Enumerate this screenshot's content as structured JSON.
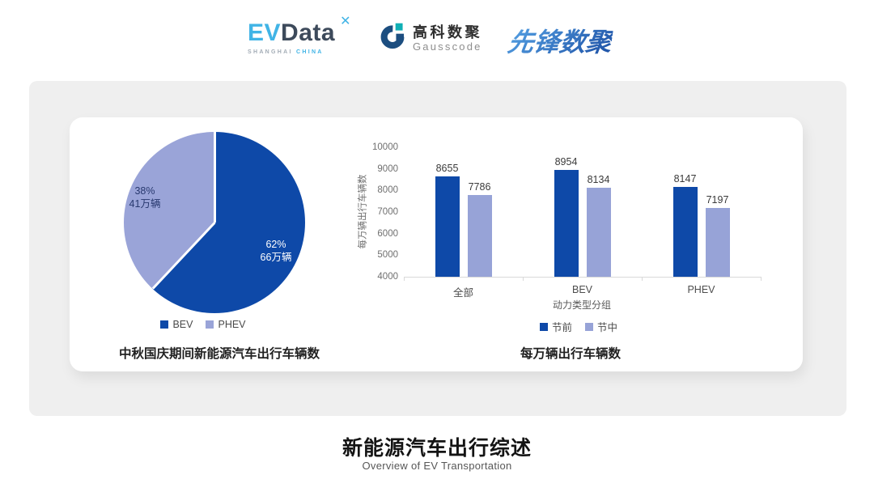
{
  "header": {
    "logos": {
      "evdata": {
        "part1": "EV",
        "part2": "Data",
        "mark": "✕",
        "sub1": "SHANGHAI",
        "sub2": "CHINA"
      },
      "gausscode": {
        "name_cn": "高科数聚",
        "name_en": "Gausscode"
      },
      "xianfeng": {
        "text": "先锋数聚"
      }
    }
  },
  "footer": {
    "title": "新能源汽车出行综述",
    "subtitle": "Overview of EV Transportation"
  },
  "colors": {
    "series_dark_blue": "#0E49A8",
    "series_light_blue": "#97A3D7",
    "pie_light_blue": "#9AA4D8",
    "panel_gray": "#EFEFEF"
  },
  "chart_data": [
    {
      "type": "pie",
      "title": "中秋国庆期间新能源汽车出行车辆数",
      "slices": [
        {
          "label": "BEV",
          "percent": 62,
          "value_label": "66万辆",
          "color": "#0E49A8",
          "text_color": "#FFFFFF"
        },
        {
          "label": "PHEV",
          "percent": 38,
          "value_label": "41万辆",
          "color": "#9AA4D8",
          "text_color": "#28396F"
        }
      ],
      "start_angle": "12-oclock",
      "direction": "clockwise",
      "legend_position": "bottom"
    },
    {
      "type": "bar",
      "title": "每万辆出行车辆数",
      "categories": [
        "全部",
        "BEV",
        "PHEV"
      ],
      "series": [
        {
          "name": "节前",
          "values": [
            8655,
            8954,
            8147
          ],
          "color": "#0E49A8"
        },
        {
          "name": "节中",
          "values": [
            7786,
            8134,
            7197
          ],
          "color": "#97A3D7"
        }
      ],
      "ylabel": "每万辆出行车辆数",
      "xlabel": "动力类型分组",
      "ylim": [
        4000,
        10000
      ],
      "ytick_step": 1000,
      "grid": false,
      "legend_position": "bottom"
    }
  ]
}
